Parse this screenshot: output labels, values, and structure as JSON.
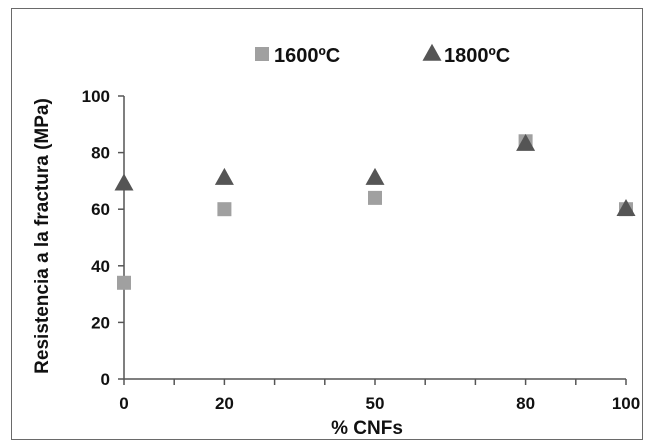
{
  "chart_data": {
    "type": "scatter",
    "title": "",
    "xlabel": "% CNFs",
    "ylabel": "Resistencia a la fractura (MPa)",
    "xlim": [
      0,
      100
    ],
    "ylim": [
      0,
      100
    ],
    "x_ticks": [
      0,
      20,
      50,
      80,
      100
    ],
    "y_ticks": [
      0,
      20,
      40,
      60,
      80,
      100
    ],
    "legend_position": "top",
    "grid": false,
    "series": [
      {
        "name": "1600ºC",
        "marker": "square",
        "color": "#a0a0a0",
        "x": [
          0,
          20,
          50,
          80,
          100
        ],
        "y": [
          34,
          60,
          64,
          84,
          60
        ]
      },
      {
        "name": "1800ºC",
        "marker": "triangle",
        "color": "#555555",
        "x": [
          0,
          20,
          50,
          80,
          100
        ],
        "y": [
          69,
          71,
          71,
          83,
          60
        ]
      }
    ]
  }
}
